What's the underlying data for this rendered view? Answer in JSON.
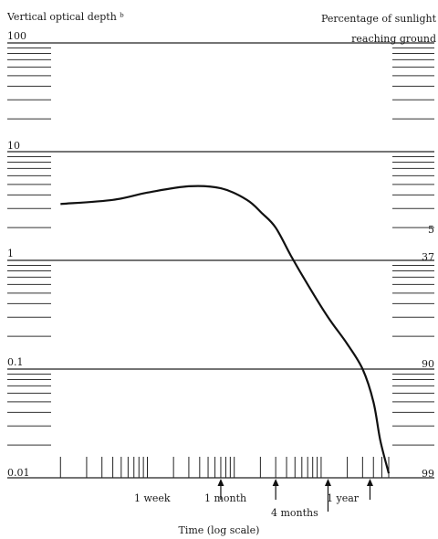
{
  "chart_data": {
    "type": "line",
    "left_axis_title": "Vertical optical depth ᵇ",
    "right_axis_title_line1": "Percentage of sunlight",
    "right_axis_title_line2": "reaching ground",
    "xlabel": "Time (log scale)",
    "x_scale": "log",
    "y_scale": "log",
    "ylim": [
      0.01,
      100
    ],
    "y_ticks": [
      "100",
      "10",
      "1",
      "0.1",
      "0.01"
    ],
    "right_ticks": [
      "5",
      "37",
      "90",
      "99"
    ],
    "events": [
      "1 week",
      "1 month",
      "4 months",
      "1 year"
    ],
    "series": [
      {
        "values": [
          {
            "x": 0.1,
            "y": 3.3
          },
          {
            "x": 0.4,
            "y": 3.6
          },
          {
            "x": 1,
            "y": 4.2
          },
          {
            "x": 3,
            "y": 4.8
          },
          {
            "x": 7,
            "y": 4.6
          },
          {
            "x": 14,
            "y": 3.6
          },
          {
            "x": 21,
            "y": 2.7
          },
          {
            "x": 30,
            "y": 2.0
          },
          {
            "x": 45,
            "y": 1.1
          },
          {
            "x": 70,
            "y": 0.6
          },
          {
            "x": 120,
            "y": 0.3
          },
          {
            "x": 200,
            "y": 0.17
          },
          {
            "x": 300,
            "y": 0.1
          },
          {
            "x": 400,
            "y": 0.05
          },
          {
            "x": 480,
            "y": 0.022
          },
          {
            "x": 600,
            "y": 0.011
          }
        ]
      }
    ],
    "grid": "horizontal major lines",
    "legend": "none"
  }
}
